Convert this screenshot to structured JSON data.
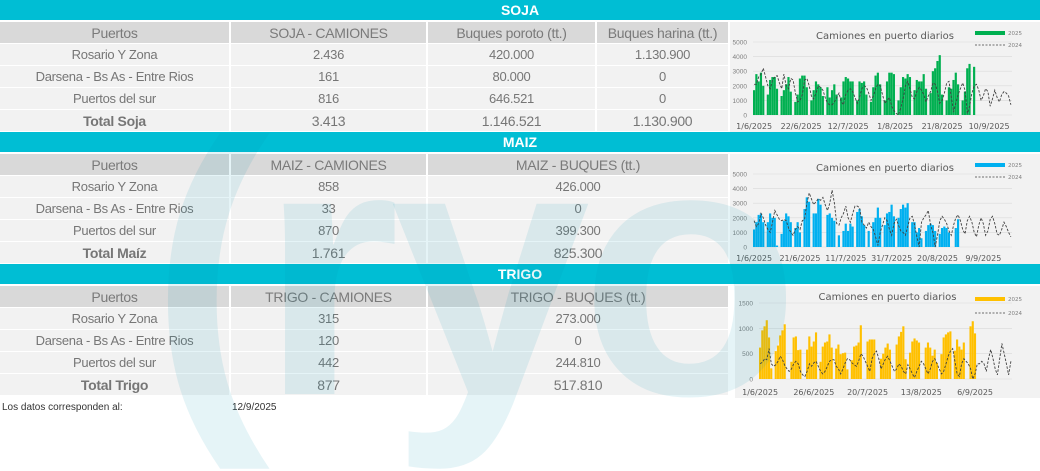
{
  "watermark": "ryo",
  "colors": {
    "banner": "#00bed4",
    "soja": "#00b050",
    "maiz": "#00b0f0",
    "trigo": "#ffc000",
    "line2024": "#404040"
  },
  "soja": {
    "title": "SOJA",
    "headers": [
      "Puertos",
      "SOJA - CAMIONES",
      "Buques poroto (tt.)",
      "Buques harina (tt.)"
    ],
    "rows": [
      [
        "Rosario Y Zona",
        "2.436",
        "420.000",
        "1.130.900"
      ],
      [
        "Darsena - Bs As - Entre Rios",
        "161",
        "80.000",
        "0"
      ],
      [
        "Puertos del sur",
        "816",
        "646.521",
        "0"
      ],
      [
        "Total Soja",
        "3.413",
        "1.146.521",
        "1.130.900"
      ]
    ]
  },
  "maiz": {
    "title": "MAIZ",
    "headers": [
      "Puertos",
      "MAIZ - CAMIONES",
      "MAIZ - BUQUES (tt.)"
    ],
    "rows": [
      [
        "Rosario Y Zona",
        "858",
        "426.000"
      ],
      [
        "Darsena - Bs As - Entre Rios",
        "33",
        "0"
      ],
      [
        "Puertos del sur",
        "870",
        "399.300"
      ],
      [
        "Total Maíz",
        "1.761",
        "825.300"
      ]
    ]
  },
  "trigo": {
    "title": "TRIGO",
    "headers": [
      "Puertos",
      "TRIGO - CAMIONES",
      "TRIGO - BUQUES (tt.)"
    ],
    "rows": [
      [
        "Rosario Y Zona",
        "315",
        "273.000"
      ],
      [
        "Darsena - Bs As - Entre Rios",
        "120",
        "0"
      ],
      [
        "Puertos del sur",
        "442",
        "244.810"
      ],
      [
        "Total Trigo",
        "877",
        "517.810"
      ]
    ]
  },
  "footer": {
    "label": "Los datos corresponden al:",
    "date": "12/9/2025"
  },
  "chart_data": [
    {
      "type": "bar+line",
      "title": "Camiones en puerto diarios",
      "ylim": [
        0,
        5000
      ],
      "yticks": [
        "0",
        "1000",
        "2000",
        "3000",
        "4000",
        "5000"
      ],
      "xticks": [
        "1/6/2025",
        "22/6/2025",
        "12/7/2025",
        "1/8/2025",
        "21/8/2025",
        "10/9/2025"
      ],
      "grid": true,
      "legend": "top-right",
      "series": [
        {
          "name": "2025",
          "type": "bar",
          "color": "#00b050",
          "values": [
            1700,
            2800,
            2300,
            2900,
            2000,
            0,
            1400,
            2400,
            2600,
            2600,
            1800,
            0,
            1300,
            1700,
            2100,
            2600,
            1600,
            0,
            900,
            1400,
            2500,
            2700,
            2700,
            1900,
            0,
            1000,
            1700,
            2300,
            2100,
            1900,
            1300,
            0,
            1900,
            1200,
            1700,
            2100,
            1400,
            0,
            1200,
            2300,
            2600,
            2500,
            2300,
            2300,
            0,
            1000,
            2300,
            2200,
            2300,
            1400,
            0,
            900,
            1900,
            2700,
            2900,
            2100,
            0,
            1000,
            2300,
            2900,
            2900,
            2800,
            0,
            1000,
            1900,
            2600,
            2500,
            2800,
            2600,
            0,
            1700,
            2400,
            2300,
            2300,
            2800,
            1800,
            0,
            1500,
            3000,
            3200,
            3700,
            4100,
            1400,
            0,
            1000,
            1900,
            1800,
            2400,
            2900,
            2100,
            0,
            1000,
            1600,
            3200,
            3500,
            0,
            3300,
            0,
            0,
            0,
            0,
            0,
            0,
            0
          ]
        },
        {
          "name": "2024",
          "type": "line",
          "color": "#404040",
          "values": [
            2100,
            2100,
            2600,
            2800,
            3200,
            2600,
            2000,
            1800,
            2400,
            2600,
            2700,
            2200,
            1800,
            2800,
            2000,
            1800,
            2500,
            2400,
            1500,
            900,
            1000,
            1400,
            2400,
            2500,
            2000,
            1300,
            1100,
            1500,
            2000,
            1900,
            1700,
            1200,
            800,
            700,
            700,
            900,
            1200,
            1500,
            900,
            700,
            1400,
            1700,
            1800,
            1600,
            1200,
            800,
            1200,
            1800,
            2000,
            1900,
            1500,
            1000,
            1300,
            1800,
            2100,
            2000,
            1400,
            800,
            1000,
            1200,
            600,
            300,
            100,
            0,
            500,
            1100,
            2000,
            2300,
            1800,
            1200,
            1100,
            1600,
            1900,
            1700,
            1400,
            900,
            1300,
            1600,
            2200,
            2100,
            1600,
            800,
            1000,
            1500,
            2200,
            2300,
            1200,
            200,
            800,
            1400,
            1800,
            2200,
            1700,
            100,
            600,
            1500,
            2000,
            2100,
            1700,
            1000,
            1300,
            1800,
            1600,
            600,
            1100,
            1700,
            1200,
            900,
            1400,
            1600,
            1500,
            1300,
            700
          ]
        }
      ]
    },
    {
      "type": "bar+line",
      "title": "Camiones en puerto diarios",
      "ylim": [
        0,
        5000
      ],
      "yticks": [
        "0",
        "1000",
        "2000",
        "3000",
        "4000",
        "5000"
      ],
      "xticks": [
        "1/6/2025",
        "21/6/2025",
        "11/7/2025",
        "31/7/2025",
        "20/8/2025",
        "9/9/2025"
      ],
      "grid": true,
      "legend": "top-right",
      "series": [
        {
          "name": "2025",
          "type": "bar",
          "color": "#00b0f0",
          "values": [
            1200,
            1700,
            2200,
            2300,
            1700,
            0,
            1700,
            2300,
            2000,
            2000,
            100,
            0,
            900,
            1800,
            2300,
            2100,
            1700,
            0,
            1300,
            1700,
            1000,
            0,
            2600,
            3400,
            3100,
            0,
            2300,
            2300,
            3300,
            2900,
            0,
            0,
            2200,
            2300,
            2000,
            1800,
            0,
            800,
            0,
            1100,
            1600,
            1100,
            1600,
            1400,
            0,
            2400,
            2600,
            2100,
            1500,
            0,
            1100,
            0,
            1700,
            2000,
            2700,
            2000,
            0,
            1500,
            2300,
            2400,
            2900,
            2100,
            0,
            2000,
            2600,
            2900,
            2700,
            3000,
            0,
            1700,
            1700,
            1000,
            1300,
            600,
            0,
            1100,
            1500,
            1600,
            1500,
            1100,
            0,
            900,
            1300,
            1400,
            1300,
            1000,
            0,
            0,
            1300,
            1900,
            0,
            0,
            0,
            0,
            0,
            0,
            0,
            0,
            0,
            0,
            0,
            0,
            0,
            0,
            0,
            0
          ]
        },
        {
          "name": "2024",
          "type": "line",
          "color": "#404040",
          "values": [
            1800,
            1400,
            1600,
            2300,
            2000,
            1500,
            1200,
            1000,
            1700,
            2500,
            2200,
            1900,
            1800,
            1900,
            1800,
            1300,
            1000,
            800,
            1200,
            1400,
            1200,
            1800,
            1900,
            3000,
            3700,
            3300,
            2900,
            3100,
            3300,
            3200,
            3400,
            2900,
            2500,
            3000,
            3900,
            3000,
            1600,
            1500,
            2000,
            2300,
            2800,
            2000,
            1700,
            2300,
            2800,
            2800,
            2700,
            1700,
            1500,
            1300,
            1700,
            1400,
            1200,
            700,
            100,
            1000,
            1500,
            2000,
            1800,
            1200,
            800,
            1600,
            1900,
            1500,
            1100,
            1000,
            800,
            1400,
            2000,
            2100,
            1500,
            700,
            0,
            1700,
            2000,
            2200,
            2500,
            1500,
            1000,
            0,
            800,
            1800,
            2100,
            1900,
            1600,
            1100,
            800,
            1500,
            2000,
            2200,
            1800,
            1200,
            900,
            1800,
            2100,
            1700,
            1000,
            700,
            1500,
            2000,
            1600,
            800,
            1100,
            1900,
            2100,
            1600,
            900,
            800,
            1200,
            1700,
            1400,
            1000,
            700
          ]
        }
      ]
    },
    {
      "type": "bar+line",
      "title": "Camiones en puerto diarios",
      "ylim": [
        0,
        1500
      ],
      "yticks": [
        "0",
        "500",
        "1000",
        "1500"
      ],
      "xticks": [
        "1/6/2025",
        "26/6/2025",
        "20/7/2025",
        "13/8/2025",
        "6/9/2025"
      ],
      "grid": true,
      "legend": "top-right",
      "series": [
        {
          "name": "2025",
          "type": "bar",
          "color": "#ffc000",
          "values": [
            620,
            960,
            1040,
            1160,
            820,
            210,
            0,
            550,
            660,
            860,
            960,
            1080,
            0,
            0,
            340,
            820,
            840,
            570,
            580,
            0,
            0,
            580,
            840,
            640,
            740,
            920,
            0,
            340,
            640,
            720,
            740,
            880,
            620,
            0,
            600,
            680,
            490,
            510,
            520,
            190,
            0,
            370,
            640,
            660,
            720,
            1060,
            0,
            0,
            740,
            780,
            780,
            780,
            0,
            0,
            400,
            500,
            620,
            700,
            580,
            0,
            0,
            680,
            840,
            930,
            1040,
            390,
            0,
            520,
            740,
            800,
            760,
            720,
            0,
            0,
            620,
            720,
            620,
            460,
            580,
            320,
            0,
            490,
            820,
            880,
            920,
            940,
            0,
            560,
            780,
            640,
            580,
            720,
            0,
            0,
            1040,
            1140,
            900,
            0,
            0,
            0,
            0,
            0,
            0,
            0
          ]
        },
        {
          "name": "2024",
          "type": "line",
          "color": "#404040",
          "values": [
            300,
            330,
            400,
            380,
            600,
            300,
            250,
            280,
            350,
            450,
            380,
            270,
            200,
            150,
            200,
            300,
            350,
            300,
            150,
            80,
            50,
            150,
            300,
            250,
            320,
            350,
            250,
            150,
            100,
            150,
            250,
            350,
            380,
            380,
            250,
            200,
            100,
            200,
            320,
            400,
            380,
            320,
            280,
            250,
            350,
            500,
            450,
            350,
            250,
            150,
            400,
            500,
            550,
            400,
            200,
            300,
            400,
            450,
            350,
            250,
            150,
            200,
            300,
            250,
            150,
            100,
            280,
            200,
            100,
            30,
            150,
            250,
            350,
            300,
            200,
            100,
            200,
            350,
            400,
            300,
            200,
            100,
            150,
            300,
            450,
            550,
            600,
            350,
            100,
            50,
            300,
            400,
            350,
            300,
            200,
            0,
            100,
            300,
            300,
            350,
            300,
            150,
            400,
            580,
            400,
            200,
            80,
            400,
            700,
            500,
            300,
            80,
            350
          ]
        }
      ]
    }
  ]
}
